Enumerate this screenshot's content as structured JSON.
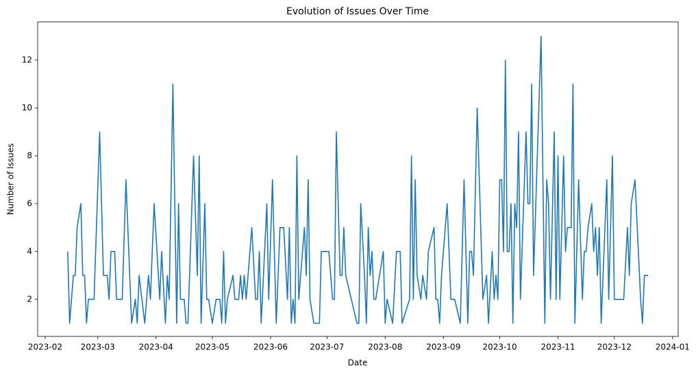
{
  "chart_data": {
    "type": "line",
    "title": "Evolution of Issues Over Time",
    "xlabel": "Date",
    "ylabel": "Number of Issues",
    "color": "#1f77b4",
    "x": [
      "2023-02-13",
      "2023-02-14",
      "2023-02-16",
      "2023-02-17",
      "2023-02-18",
      "2023-02-20",
      "2023-02-21",
      "2023-02-22",
      "2023-02-23",
      "2023-02-24",
      "2023-02-27",
      "2023-03-02",
      "2023-03-04",
      "2023-03-06",
      "2023-03-07",
      "2023-03-08",
      "2023-03-10",
      "2023-03-11",
      "2023-03-14",
      "2023-03-16",
      "2023-03-19",
      "2023-03-21",
      "2023-03-22",
      "2023-03-23",
      "2023-03-26",
      "2023-03-28",
      "2023-03-29",
      "2023-03-31",
      "2023-04-03",
      "2023-04-04",
      "2023-04-06",
      "2023-04-07",
      "2023-04-08",
      "2023-04-10",
      "2023-04-12",
      "2023-04-13",
      "2023-04-14",
      "2023-04-16",
      "2023-04-17",
      "2023-04-18",
      "2023-04-21",
      "2023-04-23",
      "2023-04-24",
      "2023-04-25",
      "2023-04-27",
      "2023-04-28",
      "2023-04-29",
      "2023-05-01",
      "2023-05-03",
      "2023-05-05",
      "2023-05-06",
      "2023-05-07",
      "2023-05-08",
      "2023-05-09",
      "2023-05-12",
      "2023-05-13",
      "2023-05-15",
      "2023-05-16",
      "2023-05-17",
      "2023-05-18",
      "2023-05-19",
      "2023-05-22",
      "2023-05-24",
      "2023-05-25",
      "2023-05-26",
      "2023-05-27",
      "2023-05-30",
      "2023-05-31",
      "2023-06-02",
      "2023-06-04",
      "2023-06-06",
      "2023-06-08",
      "2023-06-10",
      "2023-06-11",
      "2023-06-12",
      "2023-06-13",
      "2023-06-14",
      "2023-06-15",
      "2023-06-16",
      "2023-06-19",
      "2023-06-20",
      "2023-06-21",
      "2023-06-22",
      "2023-06-24",
      "2023-06-27",
      "2023-06-28",
      "2023-07-02",
      "2023-07-04",
      "2023-07-05",
      "2023-07-06",
      "2023-07-08",
      "2023-07-09",
      "2023-07-10",
      "2023-07-11",
      "2023-07-17",
      "2023-07-18",
      "2023-07-19",
      "2023-07-21",
      "2023-07-22",
      "2023-07-23",
      "2023-07-24",
      "2023-07-25",
      "2023-07-26",
      "2023-07-27",
      "2023-07-31",
      "2023-08-01",
      "2023-08-02",
      "2023-08-05",
      "2023-08-07",
      "2023-08-09",
      "2023-08-10",
      "2023-08-14",
      "2023-08-15",
      "2023-08-16",
      "2023-08-17",
      "2023-08-18",
      "2023-08-20",
      "2023-08-21",
      "2023-08-23",
      "2023-08-24",
      "2023-08-27",
      "2023-08-28",
      "2023-08-29",
      "2023-08-30",
      "2023-08-31",
      "2023-09-03",
      "2023-09-05",
      "2023-09-07",
      "2023-09-10",
      "2023-09-12",
      "2023-09-14",
      "2023-09-15",
      "2023-09-16",
      "2023-09-17",
      "2023-09-19",
      "2023-09-22",
      "2023-09-24",
      "2023-09-25",
      "2023-09-27",
      "2023-09-28",
      "2023-09-29",
      "2023-09-30",
      "2023-10-01",
      "2023-10-02",
      "2023-10-03",
      "2023-10-04",
      "2023-10-05",
      "2023-10-06",
      "2023-10-07",
      "2023-10-08",
      "2023-10-09",
      "2023-10-10",
      "2023-10-11",
      "2023-10-12",
      "2023-10-15",
      "2023-10-16",
      "2023-10-17",
      "2023-10-18",
      "2023-10-19",
      "2023-10-23",
      "2023-10-25",
      "2023-10-26",
      "2023-10-27",
      "2023-10-28",
      "2023-10-30",
      "2023-10-31",
      "2023-11-01",
      "2023-11-02",
      "2023-11-04",
      "2023-11-05",
      "2023-11-06",
      "2023-11-08",
      "2023-11-09",
      "2023-11-10",
      "2023-11-12",
      "2023-11-14",
      "2023-11-15",
      "2023-11-16",
      "2023-11-17",
      "2023-11-19",
      "2023-11-20",
      "2023-11-21",
      "2023-11-22",
      "2023-11-23",
      "2023-11-24",
      "2023-11-27",
      "2023-11-28",
      "2023-11-30",
      "2023-12-01",
      "2023-12-03",
      "2023-12-06",
      "2023-12-08",
      "2023-12-09",
      "2023-12-10",
      "2023-12-12",
      "2023-12-15",
      "2023-12-16",
      "2023-12-17",
      "2023-12-19"
    ],
    "values": [
      4,
      1,
      3,
      3,
      5,
      6,
      3,
      3,
      1,
      2,
      2,
      9,
      3,
      3,
      2,
      4,
      4,
      2,
      2,
      7,
      1,
      2,
      1,
      3,
      1,
      3,
      2,
      6,
      2,
      4,
      1,
      3,
      2,
      11,
      1,
      6,
      2,
      2,
      1,
      1,
      8,
      3,
      8,
      1,
      6,
      2,
      2,
      1,
      2,
      2,
      1,
      4,
      1,
      2,
      3,
      2,
      2,
      3,
      2,
      3,
      2,
      5,
      2,
      2,
      4,
      1,
      6,
      2,
      7,
      1,
      5,
      5,
      2,
      5,
      1,
      2,
      1,
      8,
      2,
      5,
      3,
      7,
      2,
      1,
      1,
      4,
      4,
      2,
      2,
      9,
      3,
      3,
      5,
      3,
      1,
      1,
      6,
      3,
      1,
      5,
      3,
      4,
      2,
      2,
      4,
      1,
      2,
      1,
      4,
      4,
      1,
      2,
      8,
      2,
      7,
      3,
      2,
      3,
      2,
      4,
      5,
      2,
      2,
      1,
      3,
      6,
      2,
      2,
      1,
      7,
      1,
      4,
      4,
      3,
      10,
      2,
      3,
      1,
      4,
      2,
      3,
      2,
      7,
      7,
      4,
      12,
      4,
      4,
      6,
      1,
      6,
      5,
      9,
      2,
      9,
      6,
      6,
      11,
      3,
      13,
      1,
      7,
      6,
      2,
      9,
      2,
      8,
      2,
      8,
      4,
      5,
      5,
      11,
      1,
      7,
      2,
      4,
      4,
      5,
      6,
      4,
      5,
      3,
      5,
      1,
      7,
      2,
      8,
      2,
      2,
      2,
      5,
      3,
      6,
      7,
      2,
      1,
      3,
      3
    ],
    "xlim": [
      "2023-01-28",
      "2024-01-04"
    ],
    "xticks": [
      {
        "value": "2023-02-01",
        "label": "2023-02"
      },
      {
        "value": "2023-03-01",
        "label": "2023-03"
      },
      {
        "value": "2023-04-01",
        "label": "2023-04"
      },
      {
        "value": "2023-05-01",
        "label": "2023-05"
      },
      {
        "value": "2023-06-01",
        "label": "2023-06"
      },
      {
        "value": "2023-07-01",
        "label": "2023-07"
      },
      {
        "value": "2023-08-01",
        "label": "2023-08"
      },
      {
        "value": "2023-09-01",
        "label": "2023-09"
      },
      {
        "value": "2023-10-01",
        "label": "2023-10"
      },
      {
        "value": "2023-11-01",
        "label": "2023-11"
      },
      {
        "value": "2023-12-01",
        "label": "2023-12"
      },
      {
        "value": "2024-01-01",
        "label": "2024-01"
      }
    ],
    "ylim": [
      0.45,
      13.6
    ],
    "yticks": [
      2,
      4,
      6,
      8,
      10,
      12
    ],
    "grid": false
  }
}
